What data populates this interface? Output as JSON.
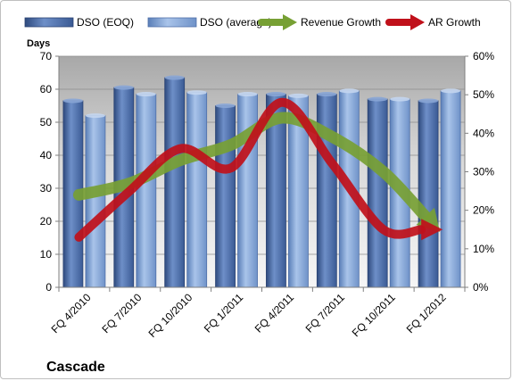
{
  "chart_data": {
    "type": "bar",
    "title": "Cascade",
    "ylabel": "Days",
    "ylim": [
      0,
      70
    ],
    "y_ticks": [
      0,
      10,
      20,
      30,
      40,
      50,
      60,
      70
    ],
    "y2lim": [
      0,
      0.6
    ],
    "y2_ticks": [
      "0%",
      "10%",
      "20%",
      "30%",
      "40%",
      "50%",
      "60%"
    ],
    "categories": [
      "FQ 4/2010",
      "FQ 7/2010",
      "FQ 10/2010",
      "FQ 1/2011",
      "FQ 4/2011",
      "FQ 7/2011",
      "FQ 10/2011",
      "FQ 1/2012"
    ],
    "series": [
      {
        "name": "DSO (EOQ)",
        "kind": "bar",
        "axis": "left",
        "color": "#4f6fa8",
        "values": [
          56.5,
          60.5,
          63.5,
          55.0,
          58.5,
          58.5,
          57.0,
          56.5
        ]
      },
      {
        "name": "DSO (average)",
        "kind": "bar",
        "axis": "left",
        "color": "#7a9cd0",
        "values": [
          52.0,
          58.5,
          59.0,
          58.5,
          58.0,
          59.5,
          57.0,
          59.5
        ]
      },
      {
        "name": "Revenue Growth",
        "kind": "arrow",
        "axis": "right",
        "color": "#77a034",
        "values": [
          0.24,
          0.27,
          0.33,
          0.37,
          0.44,
          0.39,
          0.3,
          0.16
        ]
      },
      {
        "name": "AR Growth",
        "kind": "arrow",
        "axis": "right",
        "color": "#c0101a",
        "values": [
          0.13,
          0.25,
          0.36,
          0.31,
          0.48,
          0.32,
          0.15,
          0.15
        ]
      }
    ],
    "legend_position": "top",
    "grid": true
  }
}
